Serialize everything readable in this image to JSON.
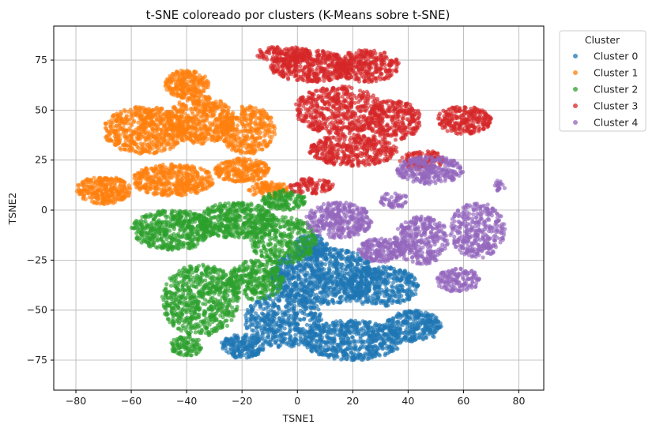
{
  "chart_data": {
    "type": "scatter",
    "title": "t-SNE coloreado por clusters (K-Means sobre t-SNE)",
    "xlabel": "TSNE1",
    "ylabel": "TSNE2",
    "xlim": [
      -88,
      89
    ],
    "ylim": [
      -90,
      92
    ],
    "xticks": [
      -80,
      -60,
      -40,
      -20,
      0,
      20,
      40,
      60,
      80
    ],
    "yticks": [
      -75,
      -50,
      -25,
      0,
      25,
      50,
      75
    ],
    "grid": true,
    "legend": {
      "title": "Cluster",
      "placement": "outside-top-right"
    },
    "series": [
      {
        "name": "Cluster 0",
        "color": "#1f77b4",
        "regions": [
          {
            "cx": 10,
            "cy": -33,
            "rx": 20,
            "ry": 14,
            "n": 900
          },
          {
            "cx": 30,
            "cy": -38,
            "rx": 14,
            "ry": 10,
            "n": 400
          },
          {
            "cx": -5,
            "cy": -55,
            "rx": 14,
            "ry": 14,
            "n": 500
          },
          {
            "cx": 20,
            "cy": -65,
            "rx": 18,
            "ry": 10,
            "n": 600
          },
          {
            "cx": 42,
            "cy": -58,
            "rx": 10,
            "ry": 8,
            "n": 300
          },
          {
            "cx": -20,
            "cy": -68,
            "rx": 8,
            "ry": 6,
            "n": 200
          },
          {
            "cx": 5,
            "cy": -18,
            "rx": 6,
            "ry": 6,
            "n": 120
          }
        ]
      },
      {
        "name": "Cluster 1",
        "color": "#ff7f0e",
        "regions": [
          {
            "cx": -55,
            "cy": 40,
            "rx": 15,
            "ry": 12,
            "n": 600
          },
          {
            "cx": -35,
            "cy": 45,
            "rx": 12,
            "ry": 12,
            "n": 500
          },
          {
            "cx": -40,
            "cy": 63,
            "rx": 8,
            "ry": 7,
            "n": 250
          },
          {
            "cx": -18,
            "cy": 40,
            "rx": 10,
            "ry": 12,
            "n": 350
          },
          {
            "cx": -70,
            "cy": 10,
            "rx": 10,
            "ry": 7,
            "n": 300
          },
          {
            "cx": -45,
            "cy": 15,
            "rx": 15,
            "ry": 8,
            "n": 450
          },
          {
            "cx": -20,
            "cy": 20,
            "rx": 10,
            "ry": 6,
            "n": 250
          },
          {
            "cx": -10,
            "cy": 10,
            "rx": 8,
            "ry": 4,
            "n": 120
          }
        ]
      },
      {
        "name": "Cluster 2",
        "color": "#2ca02c",
        "regions": [
          {
            "cx": -45,
            "cy": -10,
            "rx": 15,
            "ry": 10,
            "n": 500
          },
          {
            "cx": -22,
            "cy": -5,
            "rx": 14,
            "ry": 9,
            "n": 450
          },
          {
            "cx": -5,
            "cy": -15,
            "rx": 12,
            "ry": 12,
            "n": 350
          },
          {
            "cx": -35,
            "cy": -45,
            "rx": 14,
            "ry": 18,
            "n": 650
          },
          {
            "cx": -15,
            "cy": -35,
            "rx": 10,
            "ry": 10,
            "n": 300
          },
          {
            "cx": -5,
            "cy": 5,
            "rx": 8,
            "ry": 5,
            "n": 150
          },
          {
            "cx": -40,
            "cy": -68,
            "rx": 6,
            "ry": 5,
            "n": 100
          }
        ]
      },
      {
        "name": "Cluster 3",
        "color": "#d62728",
        "regions": [
          {
            "cx": 5,
            "cy": 72,
            "rx": 15,
            "ry": 8,
            "n": 450
          },
          {
            "cx": 25,
            "cy": 72,
            "rx": 12,
            "ry": 8,
            "n": 300
          },
          {
            "cx": 15,
            "cy": 50,
            "rx": 16,
            "ry": 12,
            "n": 500
          },
          {
            "cx": 35,
            "cy": 45,
            "rx": 10,
            "ry": 10,
            "n": 300
          },
          {
            "cx": 20,
            "cy": 30,
            "rx": 16,
            "ry": 8,
            "n": 400
          },
          {
            "cx": 60,
            "cy": 45,
            "rx": 10,
            "ry": 7,
            "n": 250
          },
          {
            "cx": 45,
            "cy": 25,
            "rx": 8,
            "ry": 5,
            "n": 120
          },
          {
            "cx": 5,
            "cy": 12,
            "rx": 8,
            "ry": 4,
            "n": 100
          },
          {
            "cx": -5,
            "cy": 78,
            "rx": 10,
            "ry": 4,
            "n": 120
          }
        ]
      },
      {
        "name": "Cluster 4",
        "color": "#9467bd",
        "regions": [
          {
            "cx": 15,
            "cy": -5,
            "rx": 12,
            "ry": 9,
            "n": 350
          },
          {
            "cx": 30,
            "cy": -20,
            "rx": 8,
            "ry": 6,
            "n": 200
          },
          {
            "cx": 48,
            "cy": 20,
            "rx": 12,
            "ry": 7,
            "n": 300
          },
          {
            "cx": 45,
            "cy": -15,
            "rx": 10,
            "ry": 12,
            "n": 350
          },
          {
            "cx": 65,
            "cy": -10,
            "rx": 10,
            "ry": 14,
            "n": 350
          },
          {
            "cx": 58,
            "cy": -35,
            "rx": 8,
            "ry": 6,
            "n": 150
          },
          {
            "cx": 35,
            "cy": 5,
            "rx": 5,
            "ry": 4,
            "n": 60
          },
          {
            "cx": 73,
            "cy": 12,
            "rx": 2,
            "ry": 3,
            "n": 20
          }
        ]
      }
    ]
  }
}
